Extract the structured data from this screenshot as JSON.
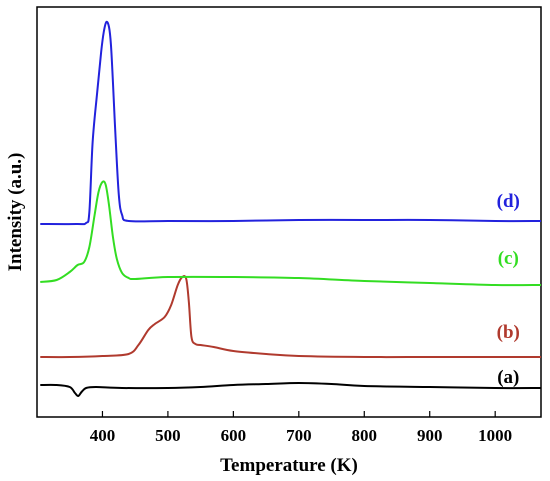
{
  "chart_data": {
    "type": "line",
    "title": "",
    "xlabel": "Temperature (K)",
    "ylabel": "Intensity (a.u.)",
    "xlim": [
      300,
      1070
    ],
    "ylim": [
      -0.3,
      3.8
    ],
    "xticks": [
      400,
      500,
      600,
      700,
      800,
      900,
      1000
    ],
    "xtick_labels": [
      "400",
      "500",
      "600",
      "700",
      "800",
      "900",
      "1000"
    ],
    "yticks": [],
    "grid": false,
    "legend": "none",
    "series": [
      {
        "label": "(a)",
        "color": "#000000",
        "label_at": [
          1020,
          0.1
        ],
        "x": [
          305,
          330,
          350,
          358,
          363,
          368,
          375,
          390,
          430,
          500,
          550,
          600,
          650,
          700,
          750,
          800,
          900,
          1000,
          1070
        ],
        "y": [
          0.02,
          0.02,
          0.0,
          -0.06,
          -0.09,
          -0.05,
          -0.01,
          0.0,
          -0.01,
          -0.01,
          0.0,
          0.02,
          0.03,
          0.04,
          0.03,
          0.01,
          0.0,
          -0.01,
          -0.01
        ]
      },
      {
        "label": "(b)",
        "color": "#b03a2e",
        "label_at": [
          1020,
          0.55
        ],
        "x": [
          305,
          350,
          400,
          440,
          455,
          470,
          480,
          495,
          505,
          515,
          522,
          528,
          532,
          536,
          542,
          550,
          570,
          600,
          650,
          700,
          800,
          900,
          1000,
          1070
        ],
        "y": [
          0.3,
          0.3,
          0.31,
          0.33,
          0.42,
          0.57,
          0.63,
          0.7,
          0.82,
          1.02,
          1.1,
          1.08,
          0.85,
          0.5,
          0.43,
          0.42,
          0.4,
          0.36,
          0.33,
          0.31,
          0.3,
          0.3,
          0.3,
          0.3
        ]
      },
      {
        "label": "(c)",
        "color": "#33dd22",
        "label_at": [
          1020,
          1.29
        ],
        "x": [
          305,
          330,
          350,
          362,
          372,
          380,
          388,
          394,
          400,
          405,
          410,
          416,
          422,
          430,
          440,
          450,
          500,
          600,
          700,
          800,
          900,
          1000,
          1070
        ],
        "y": [
          1.05,
          1.07,
          1.15,
          1.22,
          1.25,
          1.4,
          1.72,
          1.95,
          2.05,
          2.02,
          1.82,
          1.5,
          1.28,
          1.14,
          1.09,
          1.08,
          1.1,
          1.1,
          1.09,
          1.06,
          1.04,
          1.02,
          1.02
        ]
      },
      {
        "label": "(d)",
        "color": "#2222dd",
        "label_at": [
          1020,
          1.86
        ],
        "x": [
          305,
          360,
          375,
          380,
          385,
          392,
          398,
          402,
          406,
          410,
          413,
          416,
          420,
          425,
          430,
          440,
          500,
          600,
          700,
          800,
          900,
          1000,
          1070
        ],
        "y": [
          1.63,
          1.63,
          1.64,
          1.75,
          2.45,
          2.95,
          3.35,
          3.55,
          3.65,
          3.6,
          3.42,
          3.05,
          2.5,
          1.92,
          1.72,
          1.66,
          1.66,
          1.66,
          1.67,
          1.67,
          1.67,
          1.66,
          1.66
        ]
      }
    ]
  }
}
